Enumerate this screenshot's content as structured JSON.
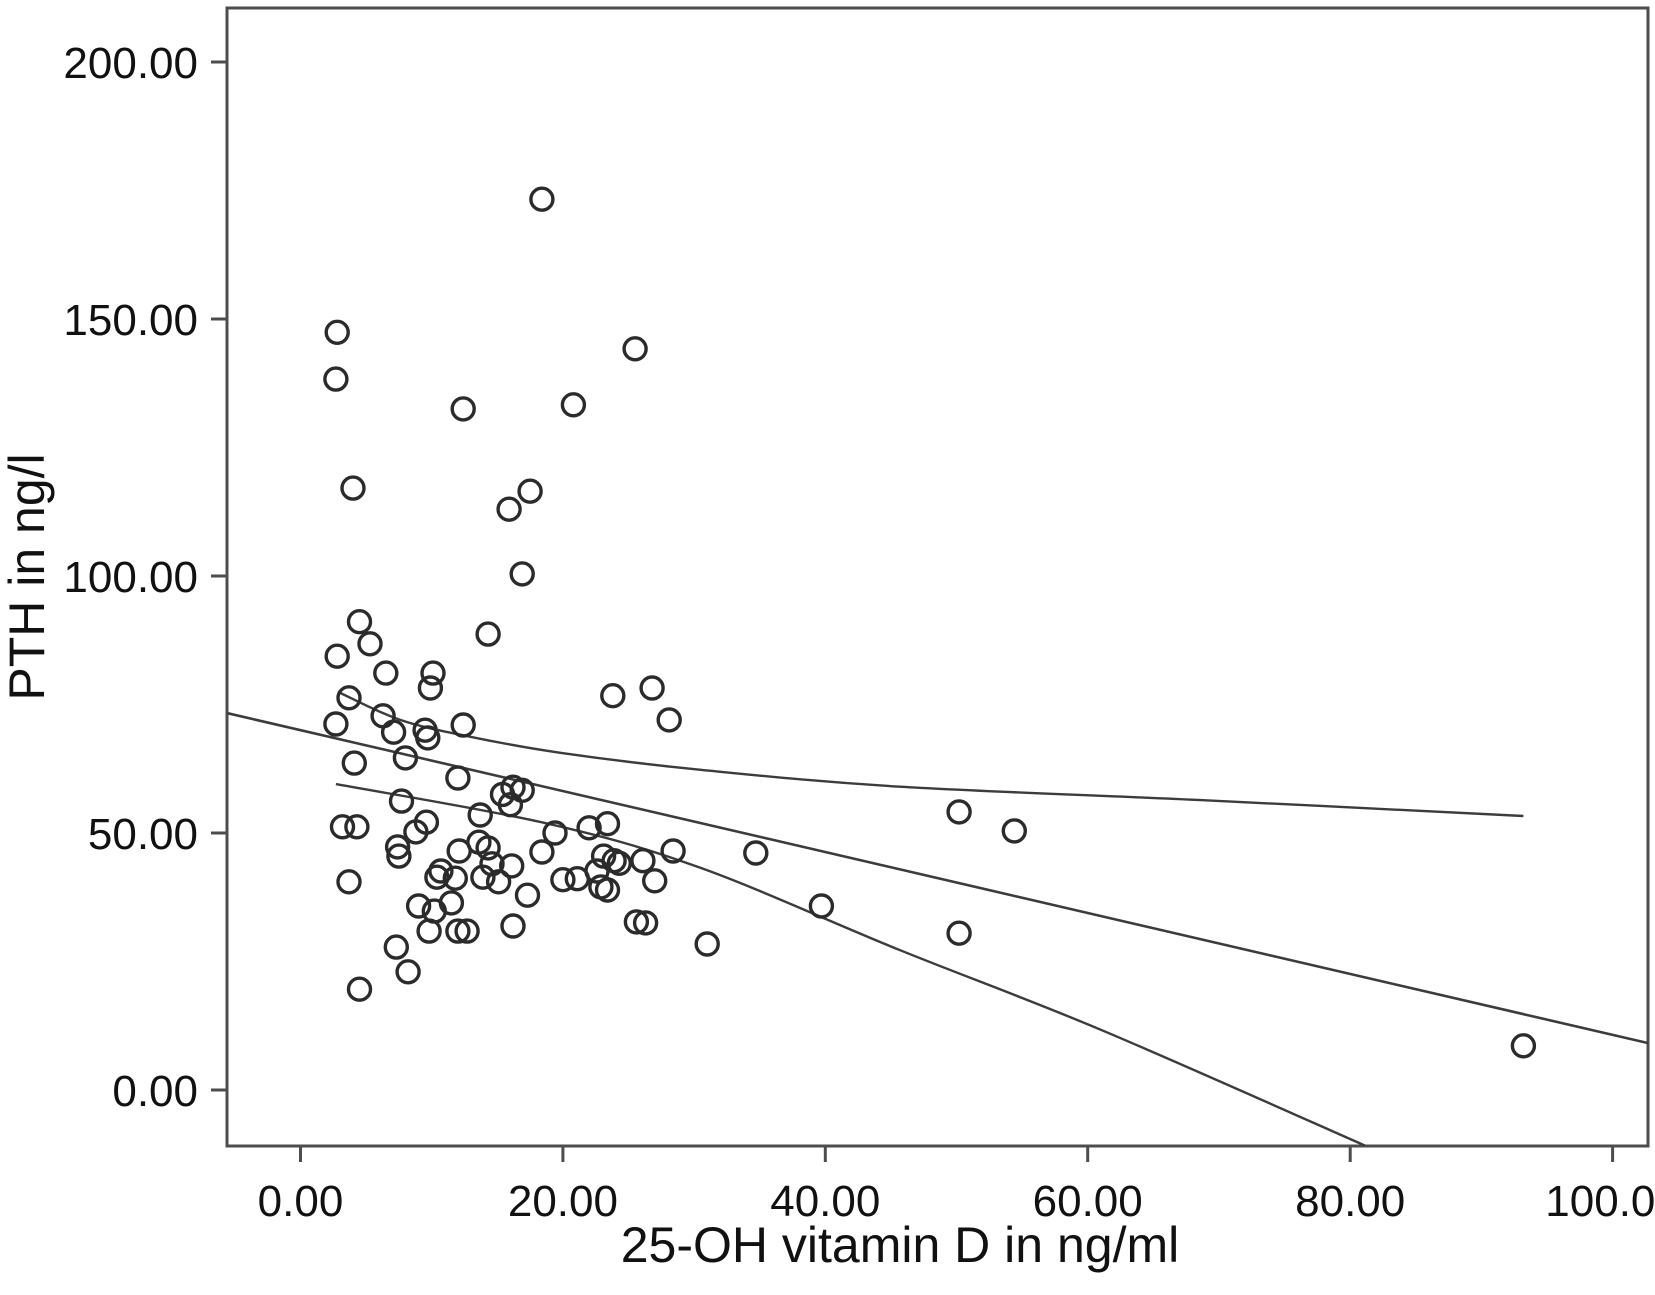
{
  "figure": {
    "background": "#ffffff",
    "frame_color": "#4d4d4d",
    "point_color": "#2b2b2b",
    "line_color": "#3c3c3c"
  },
  "chart_data": {
    "type": "scatter",
    "title": "",
    "xlabel": "25-OH vitamin D in ng/ml",
    "ylabel": "PTH in ng/l",
    "xlim": [
      -5.6,
      102.7
    ],
    "ylim": [
      -10.9,
      210.5
    ],
    "grid": false,
    "legend": "none",
    "marker": "open-circle",
    "x_ticks": {
      "values": [
        0,
        20,
        40,
        60,
        80,
        100
      ],
      "labels": [
        "0.00",
        "20.00",
        "40.00",
        "60.00",
        "80.00",
        "100.00"
      ]
    },
    "y_ticks": {
      "values": [
        0,
        50,
        100,
        150,
        200
      ],
      "labels": [
        "0.00",
        "50.00",
        "100.00",
        "150.00",
        "200.00"
      ]
    },
    "points": [
      [
        18.4,
        173.3
      ],
      [
        2.8,
        147.4
      ],
      [
        2.7,
        138.3
      ],
      [
        25.5,
        144.2
      ],
      [
        12.4,
        132.5
      ],
      [
        20.8,
        133.3
      ],
      [
        4.0,
        117.1
      ],
      [
        17.5,
        116.5
      ],
      [
        15.9,
        113.0
      ],
      [
        16.9,
        100.4
      ],
      [
        4.5,
        91.1
      ],
      [
        5.3,
        86.8
      ],
      [
        2.8,
        84.4
      ],
      [
        14.3,
        88.7
      ],
      [
        6.5,
        81.1
      ],
      [
        10.1,
        81.1
      ],
      [
        9.9,
        78.2
      ],
      [
        3.7,
        76.3
      ],
      [
        2.7,
        71.2
      ],
      [
        6.3,
        72.8
      ],
      [
        7.1,
        69.6
      ],
      [
        9.5,
        70.0
      ],
      [
        9.7,
        68.5
      ],
      [
        12.4,
        71.0
      ],
      [
        4.1,
        63.6
      ],
      [
        8.0,
        64.6
      ],
      [
        12.0,
        60.7
      ],
      [
        23.8,
        76.7
      ],
      [
        26.8,
        78.2
      ],
      [
        28.1,
        72.0
      ],
      [
        7.7,
        56.2
      ],
      [
        3.2,
        51.2
      ],
      [
        4.3,
        51.2
      ],
      [
        9.6,
        52.1
      ],
      [
        8.8,
        50.2
      ],
      [
        7.4,
        47.3
      ],
      [
        7.5,
        45.5
      ],
      [
        13.7,
        53.5
      ],
      [
        15.4,
        57.5
      ],
      [
        16.2,
        58.9
      ],
      [
        16.9,
        58.3
      ],
      [
        16.0,
        55.5
      ],
      [
        13.6,
        48.2
      ],
      [
        14.3,
        47.1
      ],
      [
        12.1,
        46.5
      ],
      [
        14.6,
        44.0
      ],
      [
        16.1,
        43.6
      ],
      [
        13.9,
        41.4
      ],
      [
        15.1,
        40.5
      ],
      [
        18.4,
        46.3
      ],
      [
        19.4,
        50.0
      ],
      [
        10.7,
        42.6
      ],
      [
        10.4,
        41.4
      ],
      [
        11.8,
        41.2
      ],
      [
        17.3,
        37.9
      ],
      [
        20.0,
        40.9
      ],
      [
        21.1,
        41.1
      ],
      [
        3.7,
        40.5
      ],
      [
        9.0,
        35.8
      ],
      [
        10.2,
        34.8
      ],
      [
        11.5,
        36.4
      ],
      [
        9.8,
        30.9
      ],
      [
        12.0,
        30.9
      ],
      [
        12.7,
        30.9
      ],
      [
        16.2,
        31.9
      ],
      [
        7.3,
        27.8
      ],
      [
        8.2,
        23.0
      ],
      [
        4.5,
        19.6
      ],
      [
        22.0,
        51.0
      ],
      [
        23.4,
        51.8
      ],
      [
        23.1,
        45.5
      ],
      [
        23.9,
        44.6
      ],
      [
        24.3,
        44.1
      ],
      [
        22.6,
        42.6
      ],
      [
        26.1,
        44.6
      ],
      [
        28.4,
        46.5
      ],
      [
        27.0,
        40.7
      ],
      [
        22.9,
        39.5
      ],
      [
        23.4,
        38.9
      ],
      [
        25.6,
        32.7
      ],
      [
        26.3,
        32.5
      ],
      [
        31.0,
        28.4
      ],
      [
        34.7,
        46.1
      ],
      [
        39.7,
        35.8
      ],
      [
        50.2,
        54.1
      ],
      [
        54.4,
        50.4
      ],
      [
        50.2,
        30.5
      ],
      [
        93.2,
        8.6
      ]
    ],
    "fit": {
      "regression_line": [
        [
          -5.56,
          73.3
        ],
        [
          102.74,
          9.1
        ]
      ],
      "upper_ci": [
        [
          2.9,
          77.4
        ],
        [
          7.6,
          72.0
        ],
        [
          13.0,
          68.7
        ],
        [
          19.8,
          65.6
        ],
        [
          30.5,
          62.3
        ],
        [
          45.7,
          59.0
        ],
        [
          68.6,
          56.4
        ],
        [
          93.2,
          53.3
        ]
      ],
      "lower_ci": [
        [
          2.7,
          59.5
        ],
        [
          18.7,
          51.9
        ],
        [
          30.5,
          43.2
        ],
        [
          45.7,
          27.2
        ],
        [
          61.0,
          11.7
        ],
        [
          81.2,
          -10.9
        ]
      ]
    }
  }
}
